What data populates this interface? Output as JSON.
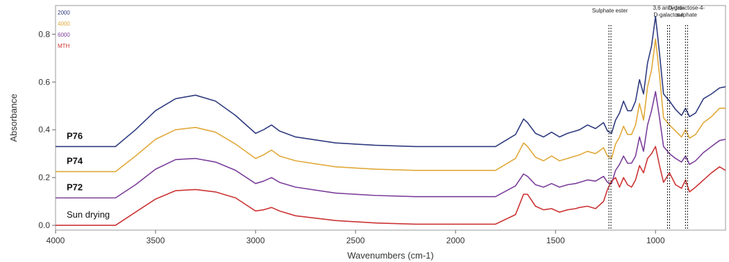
{
  "chart_data": {
    "type": "line",
    "xlabel": "Wavenumbers (cm-1)",
    "ylabel": "Absorbance",
    "xlim": [
      4000,
      650
    ],
    "x_reversed": true,
    "ylim": [
      -0.02,
      0.92
    ],
    "xticks": [
      4000,
      3500,
      3000,
      2500,
      2000,
      1500,
      1000
    ],
    "xtick_labels": [
      "4000",
      "3500",
      "3000",
      "2500",
      "2000",
      "1500",
      "1000"
    ],
    "yticks": [
      0.0,
      0.2,
      0.4,
      0.6,
      0.8
    ],
    "ytick_labels": [
      "0.0",
      "0.2",
      "0.4",
      "0.6",
      "0.8"
    ],
    "grid": false,
    "legend": {
      "placement": "top-left",
      "entries": [
        {
          "label": "2000",
          "color": "#2e3a7e"
        },
        {
          "label": "4000",
          "color": "#e0a838"
        },
        {
          "label": "6000",
          "color": "#7a3d9a"
        },
        {
          "label": "MTH",
          "color": "#cc3333"
        }
      ]
    },
    "annotations": [
      {
        "x": 1228,
        "lines": [
          "Sulphate ester"
        ]
      },
      {
        "x": 935,
        "lines": [
          "3,6 anhydro-",
          "D-galactose"
        ]
      },
      {
        "x": 845,
        "lines": [
          "D-galactose-4-",
          "sulphate"
        ]
      }
    ],
    "series": [
      {
        "name": "2000",
        "label": "P76",
        "label_bold": true,
        "color": "#2e3a7e",
        "x": [
          4000,
          3700,
          3600,
          3500,
          3400,
          3300,
          3200,
          3100,
          3000,
          2960,
          2920,
          2880,
          2800,
          2600,
          2400,
          2200,
          2000,
          1800,
          1700,
          1660,
          1640,
          1600,
          1560,
          1520,
          1480,
          1440,
          1400,
          1380,
          1340,
          1300,
          1260,
          1240,
          1220,
          1200,
          1180,
          1160,
          1140,
          1120,
          1100,
          1080,
          1060,
          1040,
          1020,
          1000,
          980,
          960,
          930,
          900,
          870,
          850,
          830,
          800,
          760,
          720,
          680,
          650
        ],
        "y": [
          0.33,
          0.33,
          0.4,
          0.48,
          0.53,
          0.545,
          0.52,
          0.46,
          0.385,
          0.4,
          0.42,
          0.395,
          0.37,
          0.345,
          0.335,
          0.33,
          0.33,
          0.33,
          0.38,
          0.445,
          0.43,
          0.385,
          0.37,
          0.39,
          0.37,
          0.385,
          0.395,
          0.4,
          0.42,
          0.405,
          0.43,
          0.395,
          0.385,
          0.44,
          0.47,
          0.52,
          0.48,
          0.48,
          0.52,
          0.61,
          0.55,
          0.68,
          0.75,
          0.875,
          0.72,
          0.55,
          0.52,
          0.485,
          0.46,
          0.49,
          0.455,
          0.47,
          0.53,
          0.55,
          0.575,
          0.58
        ]
      },
      {
        "name": "4000",
        "label": "P74",
        "label_bold": true,
        "color": "#e0a838",
        "x": [
          4000,
          3700,
          3600,
          3500,
          3400,
          3300,
          3200,
          3100,
          3000,
          2960,
          2920,
          2880,
          2800,
          2600,
          2400,
          2200,
          2000,
          1800,
          1700,
          1660,
          1640,
          1600,
          1560,
          1520,
          1480,
          1440,
          1400,
          1380,
          1340,
          1300,
          1260,
          1240,
          1220,
          1200,
          1180,
          1160,
          1140,
          1120,
          1100,
          1080,
          1060,
          1040,
          1020,
          1000,
          980,
          960,
          930,
          900,
          870,
          850,
          830,
          800,
          760,
          720,
          680,
          650
        ],
        "y": [
          0.225,
          0.225,
          0.29,
          0.36,
          0.4,
          0.41,
          0.39,
          0.34,
          0.28,
          0.295,
          0.315,
          0.29,
          0.27,
          0.245,
          0.235,
          0.23,
          0.23,
          0.23,
          0.28,
          0.345,
          0.33,
          0.285,
          0.27,
          0.29,
          0.27,
          0.28,
          0.29,
          0.295,
          0.31,
          0.3,
          0.325,
          0.29,
          0.28,
          0.34,
          0.37,
          0.415,
          0.38,
          0.38,
          0.42,
          0.51,
          0.44,
          0.58,
          0.65,
          0.78,
          0.63,
          0.45,
          0.42,
          0.395,
          0.37,
          0.4,
          0.365,
          0.38,
          0.43,
          0.455,
          0.49,
          0.49
        ]
      },
      {
        "name": "6000",
        "label": "P72",
        "label_bold": true,
        "color": "#7a3d9a",
        "x": [
          4000,
          3700,
          3600,
          3500,
          3400,
          3300,
          3200,
          3100,
          3000,
          2960,
          2920,
          2880,
          2800,
          2600,
          2400,
          2200,
          2000,
          1800,
          1700,
          1660,
          1640,
          1600,
          1560,
          1520,
          1480,
          1440,
          1400,
          1380,
          1340,
          1300,
          1260,
          1240,
          1220,
          1200,
          1180,
          1160,
          1140,
          1120,
          1100,
          1080,
          1060,
          1040,
          1020,
          1000,
          980,
          960,
          930,
          900,
          870,
          850,
          830,
          800,
          760,
          720,
          680,
          650
        ],
        "y": [
          0.115,
          0.115,
          0.17,
          0.235,
          0.275,
          0.28,
          0.265,
          0.23,
          0.175,
          0.185,
          0.2,
          0.18,
          0.16,
          0.135,
          0.125,
          0.12,
          0.12,
          0.12,
          0.165,
          0.215,
          0.205,
          0.17,
          0.16,
          0.175,
          0.16,
          0.17,
          0.175,
          0.18,
          0.19,
          0.185,
          0.205,
          0.18,
          0.175,
          0.23,
          0.255,
          0.29,
          0.26,
          0.26,
          0.29,
          0.37,
          0.31,
          0.42,
          0.48,
          0.56,
          0.45,
          0.33,
          0.3,
          0.28,
          0.265,
          0.29,
          0.255,
          0.27,
          0.305,
          0.33,
          0.355,
          0.36
        ]
      },
      {
        "name": "MTH",
        "label": "Sun drying",
        "label_bold": false,
        "color": "#cc3333",
        "x": [
          4000,
          3700,
          3600,
          3500,
          3400,
          3300,
          3200,
          3100,
          3000,
          2960,
          2920,
          2880,
          2800,
          2600,
          2400,
          2200,
          2000,
          1800,
          1700,
          1660,
          1640,
          1600,
          1560,
          1520,
          1480,
          1440,
          1400,
          1380,
          1340,
          1300,
          1260,
          1240,
          1220,
          1200,
          1180,
          1160,
          1140,
          1120,
          1100,
          1080,
          1060,
          1040,
          1020,
          1000,
          980,
          960,
          930,
          900,
          870,
          850,
          830,
          800,
          760,
          720,
          680,
          650
        ],
        "y": [
          0.0,
          0.0,
          0.055,
          0.11,
          0.145,
          0.15,
          0.14,
          0.115,
          0.06,
          0.065,
          0.075,
          0.06,
          0.04,
          0.02,
          0.01,
          0.005,
          0.005,
          0.005,
          0.045,
          0.13,
          0.13,
          0.08,
          0.065,
          0.07,
          0.055,
          0.065,
          0.07,
          0.075,
          0.08,
          0.07,
          0.1,
          0.15,
          0.185,
          0.2,
          0.16,
          0.2,
          0.17,
          0.16,
          0.19,
          0.25,
          0.22,
          0.28,
          0.3,
          0.33,
          0.25,
          0.18,
          0.22,
          0.17,
          0.155,
          0.19,
          0.14,
          0.16,
          0.19,
          0.22,
          0.245,
          0.23
        ]
      }
    ]
  }
}
